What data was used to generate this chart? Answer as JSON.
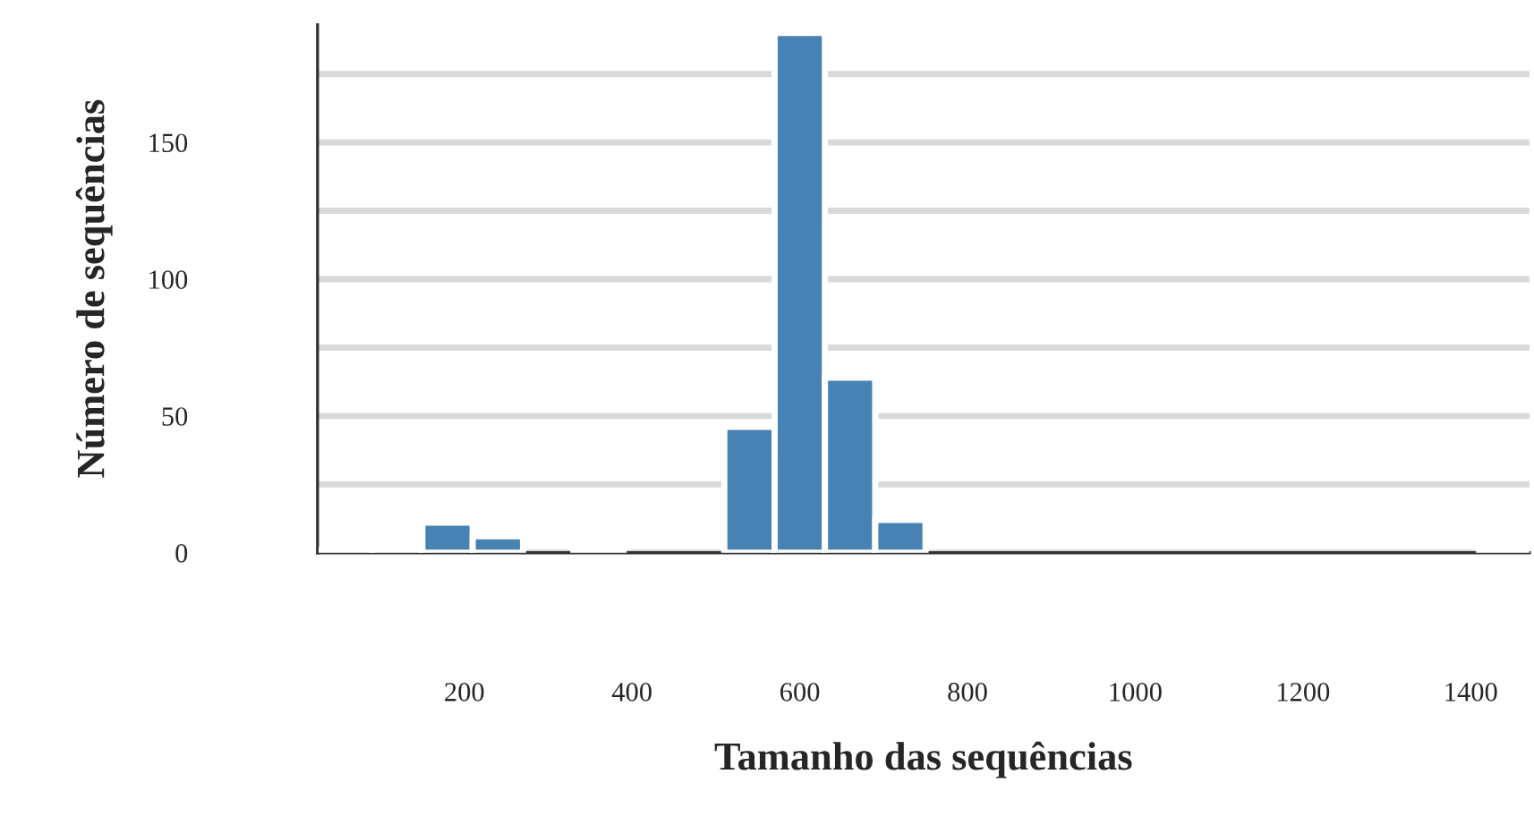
{
  "chart_data": {
    "type": "histogram",
    "xlabel": "Tamanho das sequências",
    "ylabel": "Número de sequências",
    "bins": [
      30,
      90,
      150,
      210,
      270,
      330,
      390,
      450,
      510,
      570,
      630,
      690,
      750,
      810,
      870,
      930,
      990,
      1050,
      1110,
      1170,
      1230,
      1290,
      1350,
      1410,
      1470
    ],
    "values": [
      1,
      1,
      11,
      6,
      0,
      1,
      0,
      0,
      46,
      190,
      64,
      12,
      0,
      0,
      0,
      0,
      0,
      0,
      0,
      0,
      0,
      0,
      0,
      1
    ],
    "color": "#4682b4",
    "xlim": [
      25,
      1470
    ],
    "xticks": [
      200,
      400,
      600,
      800,
      1000,
      1200,
      1400
    ],
    "ylim": [
      0,
      193
    ],
    "yticks": [
      0,
      {
        "value": 25,
        "label": null
      },
      50,
      {
        "value": 75,
        "label": null
      },
      100,
      {
        "value": 125,
        "label": null
      },
      150,
      {
        "value": 175,
        "label": null
      }
    ],
    "grid": "y"
  }
}
